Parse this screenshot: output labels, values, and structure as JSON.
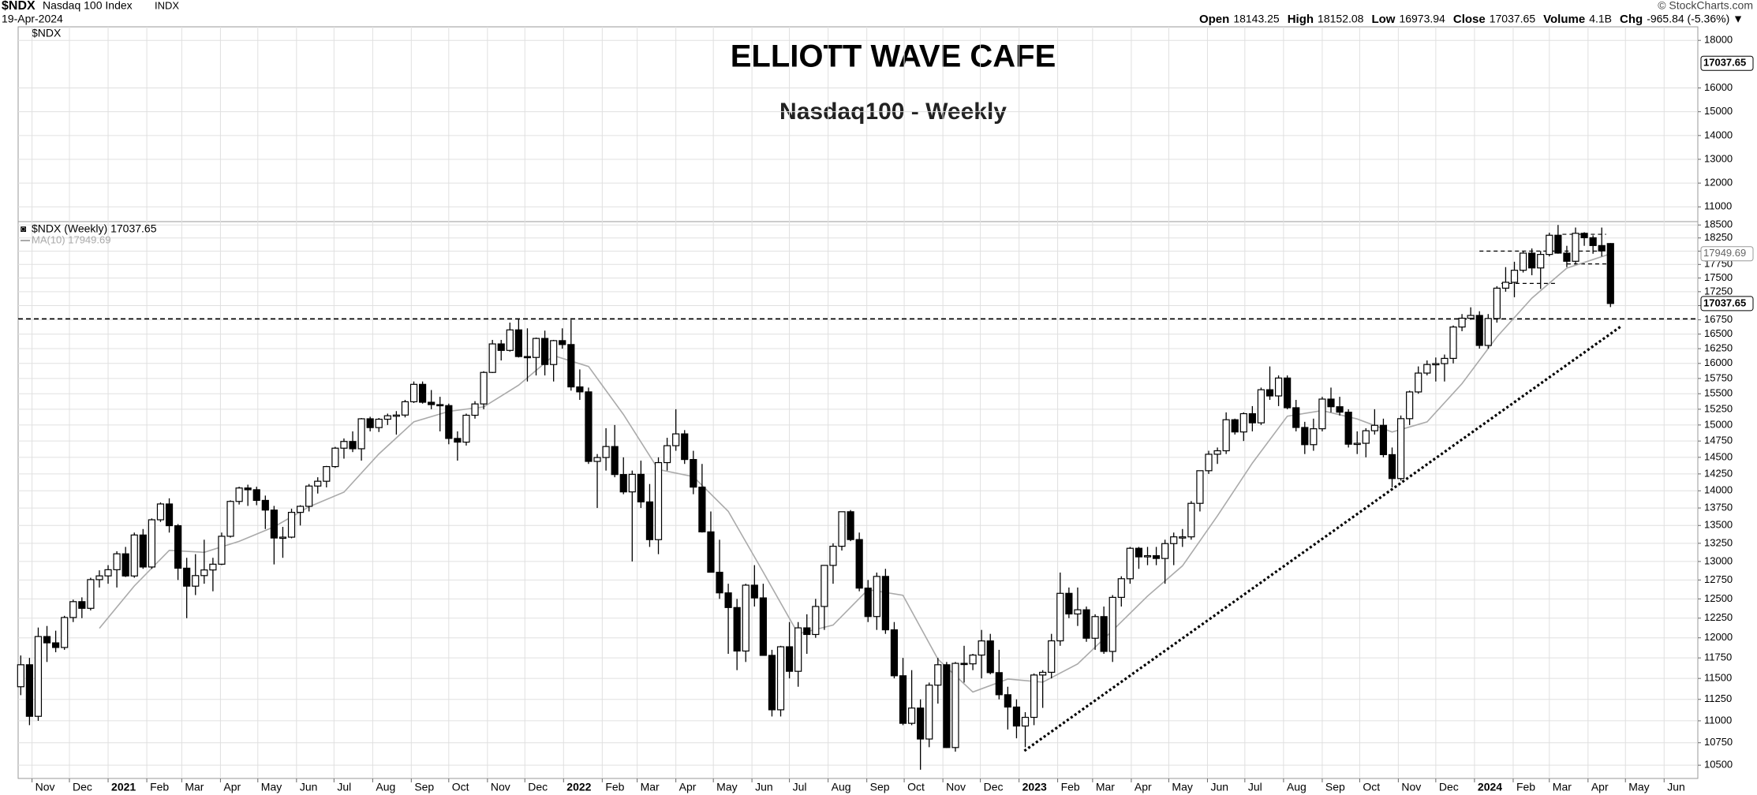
{
  "chart_data": {
    "type": "candlestick",
    "header": {
      "symbol": "$NDX",
      "name": "Nasdaq 100 Index",
      "exchange": "INDX",
      "date": "19-Apr-2024",
      "copyright": "© StockCharts.com",
      "quote": [
        {
          "label": "Open",
          "value": 18143.25
        },
        {
          "label": "High",
          "value": 18152.08
        },
        {
          "label": "Low",
          "value": 16973.94
        },
        {
          "label": "Close",
          "value": 17037.65
        },
        {
          "label": "Volume",
          "value": "4.1B"
        },
        {
          "label": "Chg",
          "value": "-965.84 (-5.36%) ▼"
        }
      ]
    },
    "upper_panel": {
      "label": "$NDX",
      "title": "ELLIOTT WAVE CAFE",
      "subtitle": "Nasdaq100 - Weekly",
      "ylim": [
        10380,
        18570
      ],
      "yticks": [
        11000,
        12000,
        13000,
        14000,
        15000,
        16000,
        18000
      ]
    },
    "log_scale": true,
    "grid": true,
    "ylim": [
      10355,
      18565
    ],
    "yticks": [
      10500,
      10750,
      11000,
      11250,
      11500,
      11750,
      12000,
      12250,
      12500,
      12750,
      13000,
      13250,
      13500,
      13750,
      14000,
      14250,
      14500,
      14750,
      15000,
      15250,
      15500,
      15750,
      16000,
      16250,
      16500,
      16750,
      17000,
      17250,
      17500,
      17750,
      18000,
      18250,
      18500
    ],
    "xlim": [
      -0.3,
      192
    ],
    "xticks": [
      {
        "value": 1.29,
        "label": "Nov"
      },
      {
        "value": 5.57,
        "label": "Dec"
      },
      {
        "value": 10,
        "label": "2021"
      },
      {
        "value": 14.43,
        "label": "Feb"
      },
      {
        "value": 18.43,
        "label": "Mar"
      },
      {
        "value": 22.86,
        "label": "Apr"
      },
      {
        "value": 27.14,
        "label": "May"
      },
      {
        "value": 31.57,
        "label": "Jun"
      },
      {
        "value": 35.86,
        "label": "Jul"
      },
      {
        "value": 40.29,
        "label": "Aug"
      },
      {
        "value": 44.71,
        "label": "Sep"
      },
      {
        "value": 49,
        "label": "Oct"
      },
      {
        "value": 53.43,
        "label": "Nov"
      },
      {
        "value": 57.71,
        "label": "Dec"
      },
      {
        "value": 62.14,
        "label": "2022"
      },
      {
        "value": 66.57,
        "label": "Feb"
      },
      {
        "value": 70.57,
        "label": "Mar"
      },
      {
        "value": 75,
        "label": "Apr"
      },
      {
        "value": 79.29,
        "label": "May"
      },
      {
        "value": 83.71,
        "label": "Jun"
      },
      {
        "value": 88,
        "label": "Jul"
      },
      {
        "value": 92.43,
        "label": "Aug"
      },
      {
        "value": 96.86,
        "label": "Sep"
      },
      {
        "value": 101.14,
        "label": "Oct"
      },
      {
        "value": 105.57,
        "label": "Nov"
      },
      {
        "value": 109.86,
        "label": "Dec"
      },
      {
        "value": 114.29,
        "label": "2023"
      },
      {
        "value": 118.71,
        "label": "Feb"
      },
      {
        "value": 122.71,
        "label": "Mar"
      },
      {
        "value": 127.14,
        "label": "Apr"
      },
      {
        "value": 131.43,
        "label": "May"
      },
      {
        "value": 135.86,
        "label": "Jun"
      },
      {
        "value": 140.14,
        "label": "Jul"
      },
      {
        "value": 144.57,
        "label": "Aug"
      },
      {
        "value": 149,
        "label": "Sep"
      },
      {
        "value": 153.29,
        "label": "Oct"
      },
      {
        "value": 157.71,
        "label": "Nov"
      },
      {
        "value": 162,
        "label": "Dec"
      },
      {
        "value": 166.43,
        "label": "2024"
      },
      {
        "value": 170.86,
        "label": "Feb"
      },
      {
        "value": 175,
        "label": "Mar"
      },
      {
        "value": 179.43,
        "label": "Apr"
      },
      {
        "value": 183.71,
        "label": "May"
      },
      {
        "value": 188.14,
        "label": "Jun"
      }
    ],
    "series": [
      {
        "name": "$NDX (Weekly) 17037.65",
        "color": "#000000",
        "open": [
          11400,
          11666,
          11052,
          12016,
          11937,
          11879,
          12258,
          12464,
          12377,
          12755,
          12805,
          12888,
          13105,
          12804,
          13366,
          12925,
          13581,
          13808,
          13497,
          12909,
          12668,
          12809,
          12885,
          12963,
          13348,
          13845,
          14041,
          14016,
          13860,
          13720,
          13324,
          13336,
          13687,
          13774,
          14070,
          14141,
          14360,
          14640,
          14743,
          14631,
          15098,
          14959,
          15091,
          15146,
          15157,
          15370,
          15653,
          15362,
          15324,
          15308,
          14790,
          14733,
          15154,
          15335,
          15850,
          16331,
          16220,
          16573,
          16116,
          16101,
          16425,
          15982,
          16387,
          16320,
          15611,
          15530,
          14438,
          14497,
          14665,
          14241,
          13984,
          14244,
          13838,
          13301,
          14420,
          14678,
          14861,
          14467,
          14054,
          13410,
          12854,
          12579,
          12387,
          11835,
          12681,
          12513,
          11781,
          11128,
          11888,
          11586,
          12126,
          12042,
          12401,
          12947,
          13209,
          13696,
          13302,
          12642,
          12271,
          12798,
          12101,
          11532,
          10971,
          11148,
          10792,
          11419,
          11666,
          10696,
          11683,
          11677,
          11785,
          11961,
          11570,
          11305,
          11160,
          10940,
          11040,
          11541,
          11574,
          11962,
          12573,
          12304,
          12358,
          11995,
          12270,
          11830,
          12520,
          12767,
          13181,
          13063,
          13079,
          13041,
          13246,
          13340,
          13340,
          13817,
          14298,
          14547,
          14600,
          15083,
          14891,
          15179,
          15034,
          15565,
          15464,
          15757,
          15274,
          14961,
          14694,
          14941,
          15413,
          15290,
          15203,
          14701,
          14715,
          14910,
          14995,
          14541,
          14181,
          15100,
          15529,
          15839,
          15982,
          15997,
          16085,
          16623,
          16777,
          16826,
          16305,
          16772,
          17314,
          17421,
          17642,
          17962,
          17685,
          17937,
          18302,
          17962,
          17809,
          18339,
          18254,
          18105,
          18143.25
        ],
        "high": [
          11780,
          11750,
          12130,
          12150,
          12090,
          12280,
          12490,
          12520,
          12780,
          12880,
          12950,
          13140,
          13200,
          13400,
          13450,
          13600,
          13830,
          13890,
          13520,
          13050,
          13100,
          13300,
          13050,
          13400,
          13860,
          14060,
          14090,
          14060,
          13930,
          13780,
          13480,
          13740,
          13790,
          14100,
          14200,
          14370,
          14660,
          14790,
          14900,
          15110,
          15130,
          15110,
          15180,
          15220,
          15400,
          15700,
          15700,
          15560,
          15450,
          15340,
          14900,
          15180,
          15380,
          15870,
          16400,
          16400,
          16700,
          16760,
          16600,
          16440,
          16560,
          16400,
          16600,
          16750,
          15900,
          15600,
          14550,
          14950,
          15000,
          14500,
          14300,
          14450,
          14100,
          14500,
          14800,
          15250,
          14920,
          14600,
          14400,
          13700,
          13300,
          12700,
          12500,
          12700,
          12950,
          12700,
          11850,
          11900,
          12200,
          12200,
          12300,
          12500,
          12950,
          13250,
          13700,
          13720,
          13400,
          12750,
          12850,
          12900,
          12200,
          11750,
          11600,
          11250,
          11450,
          11750,
          11700,
          11700,
          11900,
          11800,
          12100,
          12050,
          11850,
          11400,
          11250,
          11100,
          11560,
          11600,
          12050,
          12850,
          12650,
          12650,
          12400,
          12300,
          12400,
          12550,
          12800,
          13200,
          13200,
          13200,
          13200,
          13300,
          13400,
          13450,
          13850,
          14300,
          14600,
          14650,
          15200,
          15100,
          15200,
          15300,
          15600,
          15950,
          15800,
          15800,
          15400,
          15050,
          15100,
          15450,
          15600,
          15450,
          15250,
          14900,
          14950,
          15250,
          15100,
          14650,
          15150,
          15550,
          15950,
          16050,
          16100,
          16150,
          16650,
          16850,
          16970,
          16900,
          16850,
          17350,
          17700,
          17800,
          17990,
          18050,
          18000,
          18350,
          18500,
          18100,
          18450,
          18360,
          18300,
          18450,
          18152.08
        ],
        "low": [
          11300,
          10950,
          11000,
          11700,
          11820,
          11850,
          12200,
          12250,
          12350,
          12650,
          12700,
          12650,
          12790,
          12780,
          12900,
          12900,
          13550,
          13400,
          12750,
          12250,
          12550,
          12700,
          12600,
          12950,
          13330,
          13800,
          13780,
          13790,
          13450,
          12960,
          13050,
          13320,
          13500,
          13700,
          13960,
          14050,
          14340,
          14480,
          14580,
          14450,
          14900,
          14890,
          15000,
          14850,
          15120,
          15350,
          15340,
          15250,
          14900,
          14700,
          14450,
          14680,
          15100,
          15250,
          15840,
          16050,
          16200,
          16100,
          15700,
          15800,
          15800,
          15700,
          16250,
          15550,
          15400,
          14400,
          13750,
          14300,
          14200,
          13950,
          13000,
          13750,
          13200,
          13100,
          14300,
          14600,
          14400,
          13950,
          13400,
          12850,
          12500,
          11800,
          11600,
          11700,
          12400,
          11780,
          11050,
          11050,
          11500,
          11400,
          11800,
          12000,
          12100,
          12700,
          13150,
          13280,
          12600,
          12200,
          12100,
          12050,
          11500,
          10950,
          10950,
          10450,
          10700,
          11200,
          10690,
          10650,
          11450,
          11600,
          11500,
          11550,
          11250,
          10900,
          10800,
          10700,
          10950,
          11150,
          11500,
          11900,
          12250,
          12150,
          11950,
          11850,
          11800,
          11700,
          12400,
          12700,
          12900,
          12950,
          12950,
          12700,
          12950,
          13200,
          13300,
          13700,
          14250,
          14400,
          14550,
          14850,
          14750,
          14900,
          15000,
          15400,
          15300,
          15250,
          14900,
          14550,
          14600,
          14900,
          15200,
          15150,
          14650,
          14550,
          14500,
          14850,
          14500,
          14050,
          14150,
          15000,
          15500,
          15800,
          15700,
          15700,
          16000,
          16550,
          16750,
          16250,
          16250,
          16700,
          17250,
          17150,
          17600,
          17550,
          17300,
          17900,
          17950,
          17700,
          17750,
          18100,
          17950,
          17900,
          16973.94
        ],
        "close": [
          11666,
          11052,
          12016,
          11937,
          11879,
          12258,
          12464,
          12377,
          12755,
          12805,
          12888,
          13105,
          12804,
          13366,
          12925,
          13581,
          13808,
          13497,
          12909,
          12668,
          12809,
          12885,
          12963,
          13348,
          13845,
          14041,
          14016,
          13860,
          13720,
          13324,
          13336,
          13687,
          13774,
          14070,
          14141,
          14360,
          14640,
          14743,
          14631,
          15098,
          14959,
          15091,
          15146,
          15157,
          15370,
          15653,
          15362,
          15324,
          15308,
          14790,
          14733,
          15154,
          15335,
          15850,
          16331,
          16220,
          16573,
          16116,
          16101,
          16425,
          15982,
          16387,
          16320,
          15611,
          15530,
          14438,
          14497,
          14665,
          14241,
          13984,
          14244,
          13838,
          13301,
          14420,
          14678,
          14861,
          14467,
          14054,
          13410,
          12854,
          12579,
          12387,
          11835,
          12681,
          12513,
          11781,
          11128,
          11888,
          11586,
          12126,
          12042,
          12401,
          12947,
          13209,
          13696,
          13302,
          12642,
          12271,
          12798,
          12101,
          11532,
          10971,
          11148,
          10792,
          11419,
          11666,
          10696,
          11683,
          11677,
          11785,
          11961,
          11570,
          11305,
          11160,
          10940,
          11040,
          11541,
          11574,
          11962,
          12573,
          12304,
          12358,
          11995,
          12270,
          11830,
          12520,
          12767,
          13181,
          13063,
          13079,
          13041,
          13246,
          13340,
          13340,
          13817,
          14298,
          14547,
          14600,
          15083,
          14891,
          15179,
          15034,
          15565,
          15464,
          15757,
          15274,
          14961,
          14694,
          14941,
          15413,
          15290,
          15203,
          14701,
          14715,
          14910,
          14995,
          14541,
          14181,
          15100,
          15529,
          15839,
          15982,
          15997,
          16085,
          16623,
          16777,
          16826,
          16305,
          16772,
          17314,
          17421,
          17642,
          17962,
          17685,
          17937,
          18302,
          17962,
          17809,
          18339,
          18254,
          18105,
          18003,
          17037.65
        ]
      },
      {
        "name": "MA(10) 17949.69",
        "color": "#aaaaaa",
        "x": [
          9,
          13,
          17,
          21,
          25,
          29,
          33,
          37,
          41,
          45,
          49,
          53,
          57,
          61,
          65,
          69,
          73,
          77,
          81,
          85,
          89,
          93,
          97,
          101,
          105,
          109,
          113,
          117,
          121,
          125,
          129,
          133,
          137,
          141,
          145,
          149,
          153,
          157,
          161,
          165,
          169,
          173,
          177,
          182
        ],
        "values": [
          12121,
          12670,
          13153,
          13125,
          13277,
          13481,
          13767,
          13980,
          14551,
          15049,
          15216,
          15288,
          15641,
          16132,
          15948,
          15166,
          14316,
          14209,
          13701,
          12856,
          12050,
          12162,
          12622,
          12547,
          11734,
          11337,
          11492,
          11455,
          11676,
          12093,
          12537,
          12941,
          13637,
          14413,
          15139,
          15228,
          15095,
          14889,
          15049,
          15665,
          16452,
          17133,
          17681,
          17949.69
        ]
      }
    ],
    "reference_line": 16765,
    "levels": [
      {
        "value": 18000,
        "from": 167,
        "to": 181
      },
      {
        "value": 17400,
        "from": 169.5,
        "to": 176
      },
      {
        "value": 18320,
        "from": 176.5,
        "to": 181.5
      },
      {
        "value": 17760,
        "from": 177,
        "to": 182.5
      }
    ],
    "trendline": {
      "x": [
        114.9,
        183.2
      ],
      "values": [
        10659,
        16634
      ]
    }
  }
}
